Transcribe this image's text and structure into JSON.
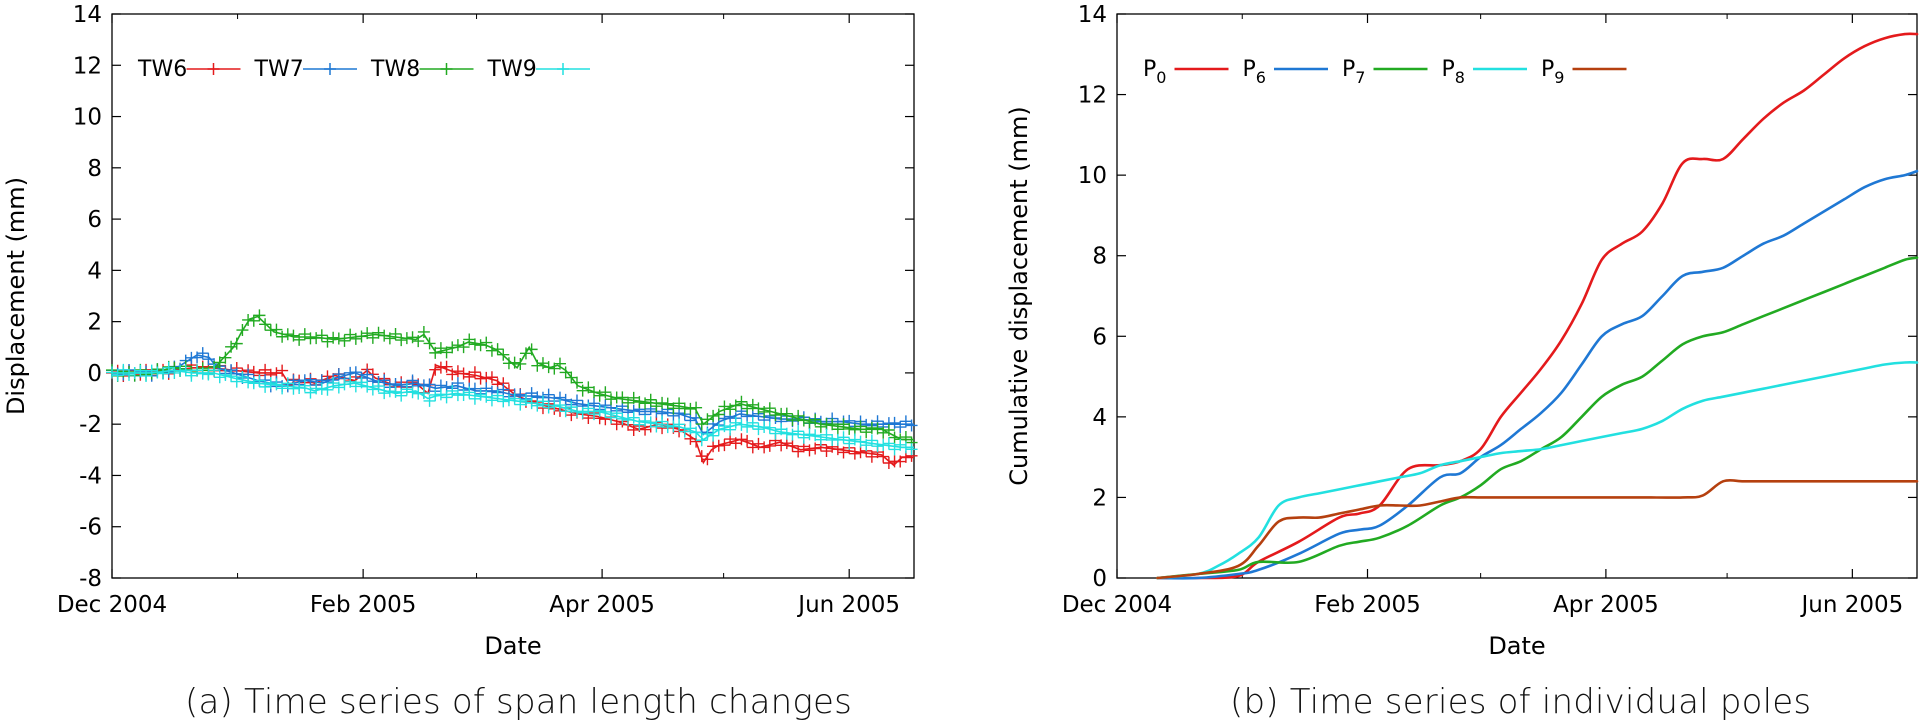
{
  "chart_data": [
    {
      "type": "scatter",
      "title": "",
      "xlabel": "Date",
      "ylabel": "Displacement (mm)",
      "caption": "(a) Time series of span length changes",
      "ylim": [
        -8,
        14
      ],
      "yticks": [
        -8,
        -6,
        -4,
        -2,
        0,
        2,
        4,
        6,
        8,
        10,
        12,
        14
      ],
      "xlim_days": [
        0,
        198
      ],
      "xtick_labels": [
        "Dec 2004",
        "Feb 2005",
        "Apr 2005",
        "Jun 2005"
      ],
      "xtick_days": [
        0,
        62,
        121,
        182
      ],
      "legend_position": "top-left, inside",
      "series": [
        {
          "name": "TW6",
          "color": "#e41a1c",
          "marker": "+",
          "x": [
            0,
            5,
            10,
            15,
            20,
            25,
            30,
            36,
            42,
            44,
            45,
            48,
            50,
            55,
            60,
            63,
            65,
            70,
            75,
            78,
            80,
            85,
            90,
            95,
            100,
            105,
            110,
            115,
            120,
            125,
            130,
            135,
            140,
            144,
            146,
            148,
            150,
            155,
            160,
            165,
            170,
            175,
            180,
            185,
            190,
            193,
            195,
            198
          ],
          "y": [
            0,
            0,
            0,
            0.1,
            0.2,
            0.2,
            0.1,
            0,
            0,
            -0.5,
            -0.3,
            -0.3,
            -0.4,
            -0.1,
            -0.3,
            0.1,
            -0.2,
            -0.5,
            -0.4,
            -0.8,
            0.3,
            0,
            -0.1,
            -0.3,
            -0.9,
            -1.2,
            -1.4,
            -1.6,
            -1.7,
            -1.9,
            -2.2,
            -2.0,
            -2.2,
            -2.6,
            -3.5,
            -3.0,
            -2.8,
            -2.6,
            -2.9,
            -2.7,
            -3.0,
            -2.9,
            -3.0,
            -3.1,
            -3.2,
            -3.6,
            -3.3,
            -3.3
          ]
        },
        {
          "name": "TW7",
          "color": "#1f78d4",
          "marker": "+",
          "x": [
            0,
            5,
            10,
            15,
            17,
            19,
            21,
            24,
            26,
            30,
            36,
            42,
            48,
            52,
            55,
            60,
            65,
            70,
            75,
            80,
            85,
            90,
            95,
            100,
            105,
            110,
            115,
            120,
            125,
            130,
            135,
            140,
            144,
            146,
            150,
            155,
            160,
            165,
            170,
            175,
            180,
            185,
            190,
            195,
            198
          ],
          "y": [
            0,
            0,
            0,
            0.1,
            0.3,
            0.5,
            0.7,
            0.6,
            0.2,
            0,
            -0.3,
            -0.5,
            -0.3,
            -0.4,
            -0.2,
            0,
            -0.3,
            -0.5,
            -0.4,
            -0.6,
            -0.5,
            -0.7,
            -0.7,
            -0.9,
            -0.9,
            -1.0,
            -1.2,
            -1.3,
            -1.4,
            -1.5,
            -1.5,
            -1.6,
            -1.8,
            -2.4,
            -1.9,
            -1.6,
            -1.7,
            -1.8,
            -1.8,
            -1.9,
            -1.9,
            -2.0,
            -2.0,
            -2.0,
            -2.0
          ]
        },
        {
          "name": "TW8",
          "color": "#22aa22",
          "marker": "+",
          "x": [
            0,
            5,
            10,
            15,
            20,
            25,
            27,
            30,
            32,
            34,
            36,
            38,
            40,
            45,
            50,
            55,
            60,
            65,
            70,
            75,
            77,
            80,
            85,
            88,
            92,
            95,
            100,
            103,
            105,
            108,
            110,
            112,
            115,
            120,
            125,
            130,
            135,
            140,
            144,
            146,
            150,
            155,
            160,
            165,
            170,
            175,
            180,
            185,
            190,
            195,
            198
          ],
          "y": [
            0,
            0,
            0,
            0.2,
            0.1,
            0.1,
            0.5,
            1.0,
            1.6,
            2.1,
            2.2,
            1.9,
            1.6,
            1.4,
            1.4,
            1.3,
            1.4,
            1.5,
            1.4,
            1.3,
            1.5,
            0.8,
            1.0,
            1.2,
            1.1,
            0.9,
            0.2,
            1.0,
            0.4,
            0.2,
            0.3,
            0.1,
            -0.5,
            -0.8,
            -1.0,
            -1.1,
            -1.2,
            -1.3,
            -1.4,
            -2.0,
            -1.5,
            -1.2,
            -1.4,
            -1.6,
            -1.8,
            -2.0,
            -2.1,
            -2.2,
            -2.2,
            -2.6,
            -2.6
          ]
        },
        {
          "name": "TW9",
          "color": "#22e0e0",
          "marker": "+",
          "x": [
            0,
            5,
            10,
            15,
            20,
            25,
            30,
            36,
            42,
            48,
            50,
            55,
            60,
            65,
            70,
            75,
            78,
            80,
            85,
            90,
            95,
            100,
            105,
            110,
            115,
            120,
            125,
            130,
            135,
            140,
            144,
            146,
            150,
            155,
            160,
            165,
            170,
            175,
            180,
            185,
            190,
            195,
            198
          ],
          "y": [
            0,
            0,
            0,
            0.1,
            0,
            0,
            -0.2,
            -0.4,
            -0.5,
            -0.6,
            -0.7,
            -0.5,
            -0.4,
            -0.6,
            -0.8,
            -0.7,
            -1.0,
            -0.9,
            -0.8,
            -0.9,
            -1.0,
            -1.1,
            -1.2,
            -1.3,
            -1.5,
            -1.5,
            -1.7,
            -1.9,
            -2.0,
            -2.1,
            -2.3,
            -2.6,
            -2.2,
            -2.0,
            -2.1,
            -2.3,
            -2.4,
            -2.5,
            -2.6,
            -2.7,
            -2.8,
            -2.9,
            -2.9
          ]
        }
      ]
    },
    {
      "type": "line",
      "title": "",
      "xlabel": "Date",
      "ylabel": "Cumulative displacement (mm)",
      "caption": "(b) Time series of individual poles",
      "ylim": [
        0,
        14
      ],
      "yticks": [
        0,
        2,
        4,
        6,
        8,
        10,
        12,
        14
      ],
      "xlim_days": [
        0,
        198
      ],
      "xtick_labels": [
        "Dec 2004",
        "Feb 2005",
        "Apr 2005",
        "Jun 2005"
      ],
      "xtick_days": [
        0,
        62,
        121,
        182
      ],
      "legend_position": "top-left, inside",
      "series": [
        {
          "name": "P",
          "sub": "0",
          "color": "#e41a1c",
          "x": [
            10,
            20,
            30,
            35,
            45,
            55,
            60,
            65,
            72,
            80,
            85,
            90,
            95,
            100,
            105,
            110,
            115,
            120,
            125,
            130,
            135,
            140,
            145,
            150,
            155,
            160,
            165,
            170,
            175,
            180,
            185,
            190,
            195,
            198
          ],
          "y": [
            0,
            0,
            0.05,
            0.4,
            0.9,
            1.5,
            1.6,
            1.8,
            2.7,
            2.8,
            2.9,
            3.2,
            4.0,
            4.6,
            5.2,
            5.9,
            6.8,
            7.9,
            8.3,
            8.6,
            9.3,
            10.3,
            10.4,
            10.4,
            10.9,
            11.4,
            11.8,
            12.1,
            12.5,
            12.9,
            13.2,
            13.4,
            13.5,
            13.5
          ]
        },
        {
          "name": "P",
          "sub": "6",
          "color": "#1f78d4",
          "x": [
            10,
            20,
            30,
            35,
            45,
            55,
            60,
            65,
            72,
            80,
            85,
            90,
            95,
            100,
            105,
            110,
            115,
            120,
            125,
            130,
            135,
            140,
            145,
            150,
            155,
            160,
            165,
            170,
            175,
            180,
            185,
            190,
            195,
            198
          ],
          "y": [
            0,
            0,
            0.1,
            0.2,
            0.6,
            1.1,
            1.2,
            1.3,
            1.8,
            2.5,
            2.6,
            3.0,
            3.3,
            3.7,
            4.1,
            4.6,
            5.3,
            6.0,
            6.3,
            6.5,
            7.0,
            7.5,
            7.6,
            7.7,
            8.0,
            8.3,
            8.5,
            8.8,
            9.1,
            9.4,
            9.7,
            9.9,
            10.0,
            10.1
          ]
        },
        {
          "name": "P",
          "sub": "7",
          "color": "#22aa22",
          "x": [
            10,
            20,
            30,
            35,
            45,
            55,
            60,
            65,
            72,
            80,
            85,
            90,
            95,
            100,
            105,
            110,
            115,
            120,
            125,
            130,
            135,
            140,
            145,
            150,
            155,
            160,
            165,
            170,
            175,
            180,
            185,
            190,
            195,
            198
          ],
          "y": [
            0,
            0.1,
            0.2,
            0.4,
            0.4,
            0.8,
            0.9,
            1.0,
            1.3,
            1.8,
            2.0,
            2.3,
            2.7,
            2.9,
            3.2,
            3.5,
            4.0,
            4.5,
            4.8,
            5.0,
            5.4,
            5.8,
            6.0,
            6.1,
            6.3,
            6.5,
            6.7,
            6.9,
            7.1,
            7.3,
            7.5,
            7.7,
            7.9,
            7.95
          ]
        },
        {
          "name": "P",
          "sub": "8",
          "color": "#22e0e0",
          "x": [
            10,
            20,
            25,
            30,
            35,
            40,
            45,
            50,
            55,
            60,
            65,
            70,
            75,
            80,
            85,
            90,
            95,
            100,
            105,
            110,
            115,
            120,
            125,
            130,
            135,
            140,
            145,
            150,
            155,
            160,
            165,
            170,
            175,
            180,
            185,
            190,
            195,
            198
          ],
          "y": [
            0,
            0.1,
            0.3,
            0.6,
            1.0,
            1.8,
            2.0,
            2.1,
            2.2,
            2.3,
            2.4,
            2.5,
            2.6,
            2.8,
            2.9,
            3.0,
            3.1,
            3.15,
            3.2,
            3.3,
            3.4,
            3.5,
            3.6,
            3.7,
            3.9,
            4.2,
            4.4,
            4.5,
            4.6,
            4.7,
            4.8,
            4.9,
            5.0,
            5.1,
            5.2,
            5.3,
            5.35,
            5.35
          ]
        },
        {
          "name": "P",
          "sub": "9",
          "color": "#b5400f",
          "x": [
            10,
            20,
            30,
            35,
            40,
            45,
            50,
            55,
            60,
            65,
            70,
            75,
            80,
            85,
            90,
            95,
            100,
            110,
            120,
            130,
            140,
            145,
            150,
            155,
            160,
            170,
            180,
            190,
            198
          ],
          "y": [
            0,
            0.1,
            0.3,
            0.8,
            1.4,
            1.5,
            1.5,
            1.6,
            1.7,
            1.8,
            1.8,
            1.8,
            1.9,
            2.0,
            2.0,
            2.0,
            2.0,
            2.0,
            2.0,
            2.0,
            2.0,
            2.05,
            2.4,
            2.4,
            2.4,
            2.4,
            2.4,
            2.4,
            2.4
          ]
        }
      ]
    }
  ]
}
